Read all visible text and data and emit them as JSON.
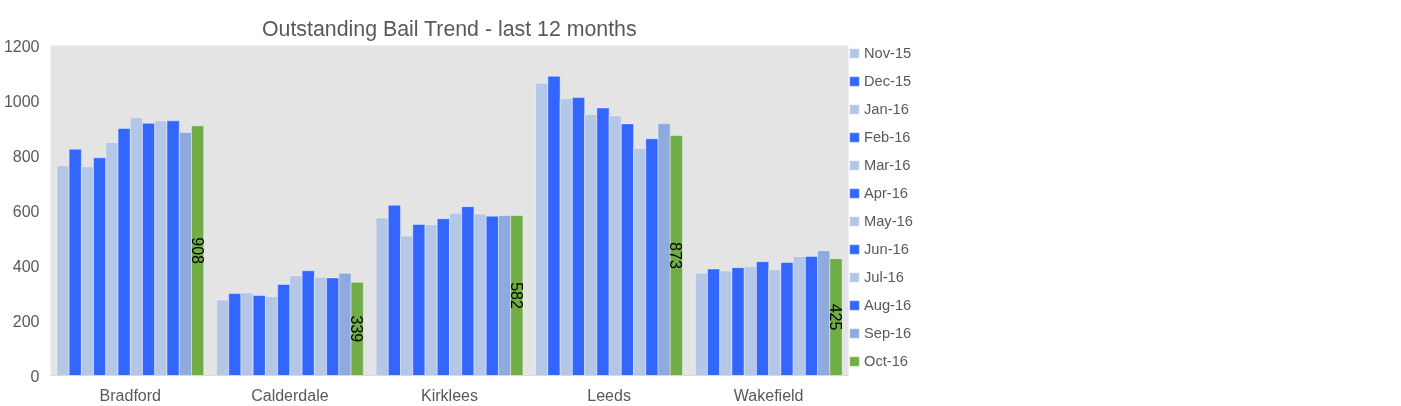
{
  "chart_data": {
    "type": "bar",
    "title": "Outstanding Bail Trend - last 12 months",
    "categories": [
      "Bradford",
      "Calderdale",
      "Kirklees",
      "Leeds",
      "Wakefield"
    ],
    "series": [
      {
        "name": "Nov-15",
        "color": "#b4c7e7",
        "values": [
          763,
          275,
          573,
          1063,
          372
        ]
      },
      {
        "name": "Dec-15",
        "color": "#3366ff",
        "values": [
          823,
          298,
          619,
          1088,
          387
        ]
      },
      {
        "name": "Jan-16",
        "color": "#b4c7e7",
        "values": [
          759,
          301,
          507,
          1007,
          380
        ]
      },
      {
        "name": "Feb-16",
        "color": "#3366ff",
        "values": [
          792,
          291,
          549,
          1011,
          392
        ]
      },
      {
        "name": "Mar-16",
        "color": "#b4c7e7",
        "values": [
          847,
          287,
          548,
          949,
          396
        ]
      },
      {
        "name": "Apr-16",
        "color": "#3366ff",
        "values": [
          898,
          331,
          570,
          973,
          414
        ]
      },
      {
        "name": "May-16",
        "color": "#b4c7e7",
        "values": [
          938,
          362,
          590,
          944,
          385
        ]
      },
      {
        "name": "Jun-16",
        "color": "#3366ff",
        "values": [
          917,
          381,
          614,
          915,
          411
        ]
      },
      {
        "name": "Jul-16",
        "color": "#b4c7e7",
        "values": [
          926,
          357,
          587,
          826,
          433
        ]
      },
      {
        "name": "Aug-16",
        "color": "#3366ff",
        "values": [
          926,
          355,
          579,
          861,
          433
        ]
      },
      {
        "name": "Sep-16",
        "color": "#8faadc",
        "values": [
          884,
          372,
          582,
          916,
          454
        ]
      },
      {
        "name": "Oct-16",
        "color": "#70ad47",
        "values": [
          908,
          339,
          582,
          873,
          425
        ],
        "value_labels": [
          "908",
          "339",
          "582",
          "873",
          "425"
        ]
      }
    ],
    "ylim": [
      0,
      1200
    ],
    "yticks": [
      0,
      200,
      400,
      600,
      800,
      1000,
      1200
    ],
    "legend": "right"
  }
}
